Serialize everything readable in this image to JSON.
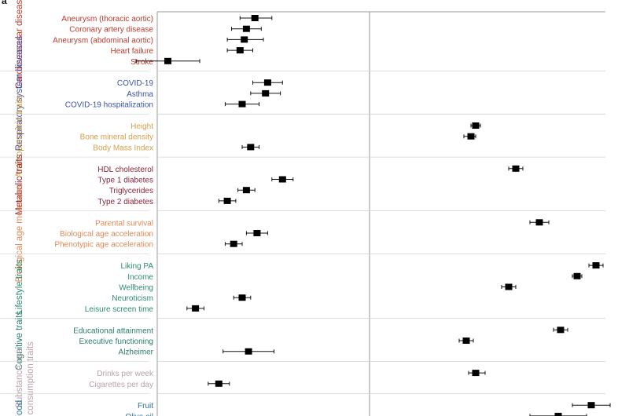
{
  "panel_label": "a",
  "chart_data": {
    "type": "forest",
    "groups": [
      {
        "name": "Cardiovascular diseases",
        "color": "#c0392b",
        "items": [
          {
            "label": "Aneurysm (thoracic aortic)",
            "left": {
              "est": 0.46,
              "lo": 0.39,
              "hi": 0.54
            },
            "right": null
          },
          {
            "label": "Coronary artery disease",
            "left": {
              "est": 0.42,
              "lo": 0.35,
              "hi": 0.49
            },
            "right": null
          },
          {
            "label": "Aneurysm (abdominal aortic)",
            "left": {
              "est": 0.41,
              "lo": 0.33,
              "hi": 0.5
            },
            "right": null
          },
          {
            "label": "Heart failure",
            "left": {
              "est": 0.39,
              "lo": 0.33,
              "hi": 0.45
            },
            "right": null
          },
          {
            "label": "Stroke",
            "left": {
              "est": 0.05,
              "lo": -0.1,
              "hi": 0.2
            },
            "right": null
          }
        ]
      },
      {
        "name": "Respiratory system diseases",
        "color": "#3c54a5",
        "items": [
          {
            "label": "COVID-19",
            "left": {
              "est": 0.52,
              "lo": 0.45,
              "hi": 0.59
            },
            "right": null
          },
          {
            "label": "Asthma",
            "left": {
              "est": 0.51,
              "lo": 0.44,
              "hi": 0.58
            },
            "right": null
          },
          {
            "label": "COVID-19 hospitalization",
            "left": {
              "est": 0.4,
              "lo": 0.32,
              "hi": 0.48
            },
            "right": null
          }
        ]
      },
      {
        "name": "Anthropometric traits",
        "color": "#d4a04a",
        "items": [
          {
            "label": "Height",
            "left": null,
            "right": {
              "est": 0.45,
              "lo": 0.43,
              "hi": 0.47
            }
          },
          {
            "label": "Bone mineral density",
            "left": null,
            "right": {
              "est": 0.43,
              "lo": 0.4,
              "hi": 0.45
            }
          },
          {
            "label": "Body Mass Index",
            "left": {
              "est": 0.44,
              "lo": 0.4,
              "hi": 0.48
            },
            "right": null
          }
        ]
      },
      {
        "name": "Metabolic traits",
        "color": "#8b2338",
        "items": [
          {
            "label": "HDL cholesterol",
            "left": null,
            "right": {
              "est": 0.62,
              "lo": 0.59,
              "hi": 0.65
            }
          },
          {
            "label": "Type 1 diabetes",
            "left": {
              "est": 0.59,
              "lo": 0.54,
              "hi": 0.64
            },
            "right": null
          },
          {
            "label": "Triglycerides",
            "left": {
              "est": 0.42,
              "lo": 0.38,
              "hi": 0.46
            },
            "right": null
          },
          {
            "label": "Type 2 diabetes",
            "left": {
              "est": 0.33,
              "lo": 0.29,
              "hi": 0.37
            },
            "right": null
          }
        ]
      },
      {
        "name": "Biological age measures",
        "color": "#e08a57",
        "items": [
          {
            "label": "Parental survival",
            "left": null,
            "right": {
              "est": 0.72,
              "lo": 0.68,
              "hi": 0.76
            }
          },
          {
            "label": "Biological age acceleration",
            "left": {
              "est": 0.47,
              "lo": 0.42,
              "hi": 0.52
            },
            "right": null
          },
          {
            "label": "Phenotypic age acceleration",
            "left": {
              "est": 0.36,
              "lo": 0.32,
              "hi": 0.4
            },
            "right": null
          }
        ]
      },
      {
        "name": "Lifestyle traits",
        "color": "#2e8b6e",
        "items": [
          {
            "label": "Liking PA",
            "left": null,
            "right": {
              "est": 0.96,
              "lo": 0.93,
              "hi": 0.99
            }
          },
          {
            "label": "Income",
            "left": null,
            "right": {
              "est": 0.88,
              "lo": 0.86,
              "hi": 0.9
            }
          },
          {
            "label": "Wellbeing",
            "left": null,
            "right": {
              "est": 0.59,
              "lo": 0.56,
              "hi": 0.62
            }
          },
          {
            "label": "Neuroticism",
            "left": {
              "est": 0.4,
              "lo": 0.36,
              "hi": 0.44
            },
            "right": null
          },
          {
            "label": "Leisure screen time",
            "left": {
              "est": 0.18,
              "lo": 0.14,
              "hi": 0.22
            },
            "right": null
          }
        ]
      },
      {
        "name": "Cognitive traits",
        "color": "#2a7d6c",
        "items": [
          {
            "label": "Educational attainment",
            "left": null,
            "right": {
              "est": 0.81,
              "lo": 0.78,
              "hi": 0.84
            }
          },
          {
            "label": "Executive functioning",
            "left": null,
            "right": {
              "est": 0.41,
              "lo": 0.38,
              "hi": 0.44
            }
          },
          {
            "label": "Alzheimer",
            "left": {
              "est": 0.43,
              "lo": 0.31,
              "hi": 0.55
            },
            "right": null
          }
        ]
      },
      {
        "name": "Substance use",
        "name2": "consumption traits",
        "color": "#b9a0ad",
        "items": [
          {
            "label": "Drinks per week",
            "left": null,
            "right": {
              "est": 0.45,
              "lo": 0.42,
              "hi": 0.49
            }
          },
          {
            "label": "Cigarettes per day",
            "left": {
              "est": 0.29,
              "lo": 0.24,
              "hi": 0.34
            },
            "right": null
          }
        ]
      },
      {
        "name": "Food",
        "color": "#2f6f8f",
        "items": [
          {
            "label": "Fruit",
            "left": null,
            "right": {
              "est": 0.94,
              "lo": 0.86,
              "hi": 1.02
            }
          },
          {
            "label": "Olive oil",
            "left": null,
            "right": {
              "est": 0.8,
              "lo": 0.68,
              "hi": 0.92
            }
          }
        ]
      }
    ]
  }
}
